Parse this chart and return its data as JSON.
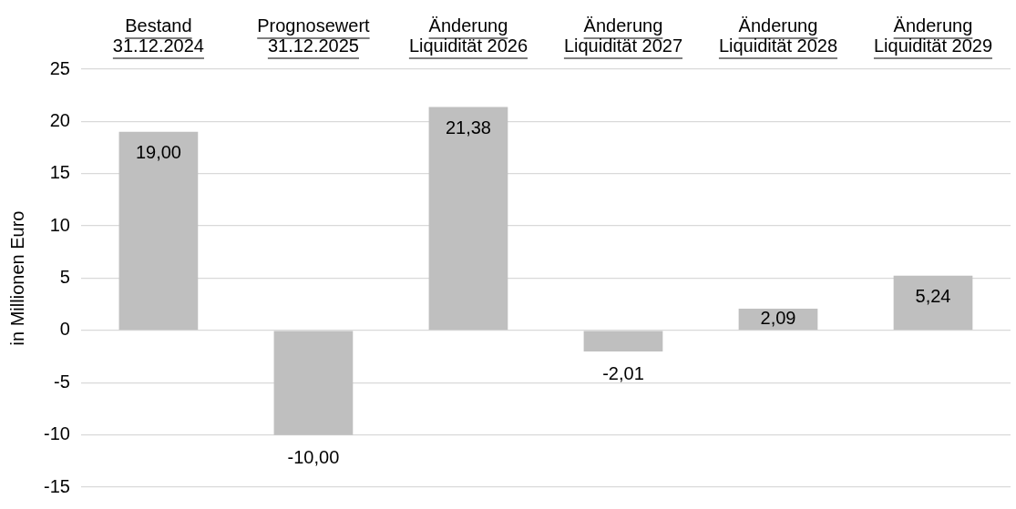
{
  "chart_data": {
    "type": "bar",
    "ylabel": "in Millionen Euro",
    "categories": [
      "Bestand 31.12.2024",
      "Prognosewert 31.12.2025",
      "Änderung Liquidität 2026",
      "Änderung Liquidität 2027",
      "Änderung Liquidität 2028",
      "Änderung Liquidität 2029"
    ],
    "values": [
      19.0,
      -10.0,
      21.38,
      -2.01,
      2.09,
      5.24
    ],
    "value_labels": [
      "19,00",
      "-10,00",
      "21,38",
      "-2,01",
      "2,09",
      "5,24"
    ],
    "color": "#bfbfbf",
    "ylim": [
      -15,
      25
    ],
    "yticks": [
      -15,
      -10,
      -5,
      0,
      5,
      10,
      15,
      20,
      25
    ],
    "grid": "y"
  }
}
